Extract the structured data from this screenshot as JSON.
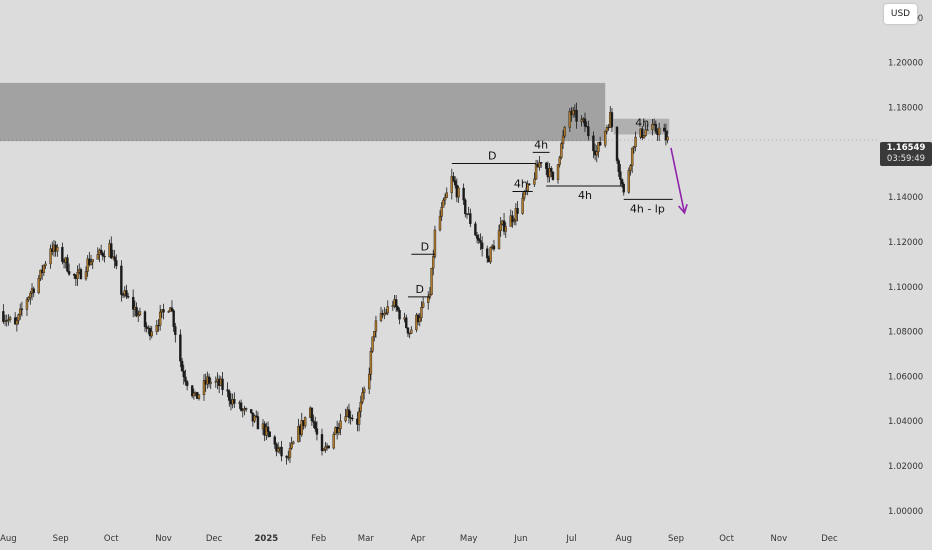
{
  "currency": "USD",
  "current_price": {
    "price": "1.16549",
    "countdown": "03:59:49",
    "value": 1.16549
  },
  "chart_data": {
    "type": "candlestick",
    "y_axis": {
      "range": [
        0.995,
        1.228
      ],
      "ticks": [
        {
          "value": 1.0,
          "label": "1.00000"
        },
        {
          "value": 1.02,
          "label": "1.02000"
        },
        {
          "value": 1.04,
          "label": "1.04000"
        },
        {
          "value": 1.06,
          "label": "1.06000"
        },
        {
          "value": 1.08,
          "label": "1.08000"
        },
        {
          "value": 1.1,
          "label": "1.10000"
        },
        {
          "value": 1.12,
          "label": "1.12000"
        },
        {
          "value": 1.14,
          "label": "1.14000"
        },
        {
          "value": 1.18,
          "label": "1.18000"
        },
        {
          "value": 1.2,
          "label": "1.20000"
        },
        {
          "value": 1.22,
          "label": "1.22000"
        }
      ]
    },
    "x_axis": {
      "range": [
        "2024-07-27",
        "2025-12-31"
      ],
      "ticks": [
        {
          "date": "2024-08-01",
          "label": "Aug"
        },
        {
          "date": "2024-09-01",
          "label": "Sep"
        },
        {
          "date": "2024-10-01",
          "label": "Oct"
        },
        {
          "date": "2024-11-01",
          "label": "Nov"
        },
        {
          "date": "2024-12-01",
          "label": "Dec"
        },
        {
          "date": "2025-01-01",
          "label": "2025",
          "bold": true
        },
        {
          "date": "2025-02-01",
          "label": "Feb"
        },
        {
          "date": "2025-03-01",
          "label": "Mar"
        },
        {
          "date": "2025-04-01",
          "label": "Apr"
        },
        {
          "date": "2025-05-01",
          "label": "May"
        },
        {
          "date": "2025-06-01",
          "label": "Jun"
        },
        {
          "date": "2025-07-01",
          "label": "Jul"
        },
        {
          "date": "2025-08-01",
          "label": "Aug"
        },
        {
          "date": "2025-09-01",
          "label": "Sep"
        },
        {
          "date": "2025-10-01",
          "label": "Oct"
        },
        {
          "date": "2025-11-01",
          "label": "Nov"
        },
        {
          "date": "2025-12-01",
          "label": "Dec"
        }
      ]
    },
    "price_path": [
      [
        "2024-07-27",
        1.089
      ],
      [
        "2024-08-05",
        1.082
      ],
      [
        "2024-08-12",
        1.095
      ],
      [
        "2024-08-20",
        1.105
      ],
      [
        "2024-08-26",
        1.118
      ],
      [
        "2024-09-03",
        1.112
      ],
      [
        "2024-09-10",
        1.103
      ],
      [
        "2024-09-17",
        1.111
      ],
      [
        "2024-09-24",
        1.114
      ],
      [
        "2024-09-30",
        1.118
      ],
      [
        "2024-10-07",
        1.098
      ],
      [
        "2024-10-15",
        1.09
      ],
      [
        "2024-10-23",
        1.08
      ],
      [
        "2024-11-01",
        1.088
      ],
      [
        "2024-11-05",
        1.093
      ],
      [
        "2024-11-12",
        1.063
      ],
      [
        "2024-11-20",
        1.05
      ],
      [
        "2024-11-27",
        1.058
      ],
      [
        "2024-12-05",
        1.056
      ],
      [
        "2024-12-12",
        1.049
      ],
      [
        "2024-12-20",
        1.043
      ],
      [
        "2024-12-30",
        1.037
      ],
      [
        "2025-01-06",
        1.029
      ],
      [
        "2025-01-13",
        1.022
      ],
      [
        "2025-01-20",
        1.035
      ],
      [
        "2025-01-27",
        1.046
      ],
      [
        "2025-02-03",
        1.024
      ],
      [
        "2025-02-10",
        1.035
      ],
      [
        "2025-02-17",
        1.045
      ],
      [
        "2025-02-24",
        1.04
      ],
      [
        "2025-03-03",
        1.063
      ],
      [
        "2025-03-06",
        1.082
      ],
      [
        "2025-03-17",
        1.093
      ],
      [
        "2025-03-27",
        1.08
      ],
      [
        "2025-04-02",
        1.088
      ],
      [
        "2025-04-08",
        1.096
      ],
      [
        "2025-04-11",
        1.124
      ],
      [
        "2025-04-21",
        1.148
      ],
      [
        "2025-05-01",
        1.131
      ],
      [
        "2025-05-12",
        1.112
      ],
      [
        "2025-05-20",
        1.126
      ],
      [
        "2025-05-28",
        1.132
      ],
      [
        "2025-06-05",
        1.143
      ],
      [
        "2025-06-13",
        1.157
      ],
      [
        "2025-06-20",
        1.148
      ],
      [
        "2025-06-30",
        1.178
      ],
      [
        "2025-07-09",
        1.172
      ],
      [
        "2025-07-16",
        1.16
      ],
      [
        "2025-07-24",
        1.176
      ],
      [
        "2025-08-01",
        1.141
      ],
      [
        "2025-08-07",
        1.165
      ],
      [
        "2025-08-14",
        1.17
      ],
      [
        "2025-08-22",
        1.17
      ],
      [
        "2025-08-27",
        1.1655
      ]
    ],
    "zones": [
      {
        "from": "2024-07-27",
        "to": "2025-07-21",
        "low": 1.165,
        "high": 1.191
      },
      {
        "from": "2025-07-26",
        "to": "2025-08-28",
        "low": 1.168,
        "high": 1.175
      }
    ],
    "levels": [
      {
        "label": "D",
        "price": 1.0955,
        "from": "2025-03-26",
        "to": "2025-04-08",
        "label_at": "2025-04-02",
        "label_side": "above"
      },
      {
        "label": "D",
        "price": 1.1145,
        "from": "2025-03-28",
        "to": "2025-04-11",
        "label_at": "2025-04-05",
        "label_side": "above"
      },
      {
        "label": "D",
        "price": 1.155,
        "from": "2025-04-21",
        "to": "2025-06-10",
        "label_at": "2025-05-15",
        "label_side": "above"
      },
      {
        "label": "4h",
        "price": 1.1425,
        "from": "2025-05-27",
        "to": "2025-06-08",
        "label_at": "2025-06-01",
        "label_side": "above"
      },
      {
        "label": "4h",
        "price": 1.16,
        "from": "2025-06-08",
        "to": "2025-06-18",
        "label_at": "2025-06-13",
        "label_side": "above"
      },
      {
        "label": "4h",
        "price": 1.145,
        "from": "2025-06-16",
        "to": "2025-07-31",
        "label_at": "2025-07-09",
        "label_side": "below"
      },
      {
        "label": "4h - lp",
        "price": 1.139,
        "from": "2025-08-01",
        "to": "2025-08-30",
        "label_at": "2025-08-15",
        "label_side": "below"
      }
    ],
    "zone_label": {
      "text": "4h",
      "date": "2025-08-12",
      "price": 1.1715
    },
    "arrow": {
      "from": [
        "2025-08-29",
        1.162
      ],
      "to": [
        "2025-09-06",
        1.133
      ],
      "color": "#8e24aa"
    }
  }
}
